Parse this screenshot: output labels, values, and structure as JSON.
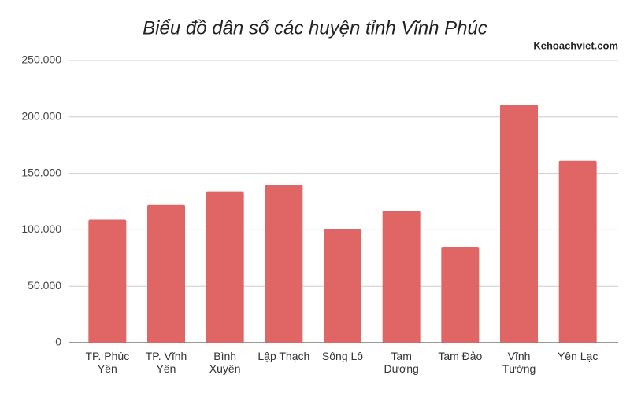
{
  "chart_data": {
    "type": "bar",
    "title": "Biểu đồ dân số các huyện tỉnh Vĩnh Phúc",
    "watermark": "Kehoachviet.com",
    "categories": [
      "TP. Phúc Yên",
      "TP. Vĩnh Yên",
      "Bình Xuyên",
      "Lập Thạch",
      "Sông Lô",
      "Tam Dương",
      "Tam Đảo",
      "Vĩnh Tường",
      "Yên Lạc"
    ],
    "values": [
      109000,
      122000,
      134000,
      140000,
      101000,
      117000,
      85000,
      211000,
      161000
    ],
    "color": "#e06666",
    "ylim": [
      0,
      250000
    ],
    "yticks": [
      0,
      {
        "value": 50000,
        "label": "50.000"
      },
      {
        "value": 100000,
        "label": "100.000"
      },
      {
        "value": 150000,
        "label": "150.000"
      },
      {
        "value": 200000,
        "label": "200.000"
      },
      {
        "value": 250000,
        "label": "250.000"
      }
    ],
    "grid": true
  }
}
